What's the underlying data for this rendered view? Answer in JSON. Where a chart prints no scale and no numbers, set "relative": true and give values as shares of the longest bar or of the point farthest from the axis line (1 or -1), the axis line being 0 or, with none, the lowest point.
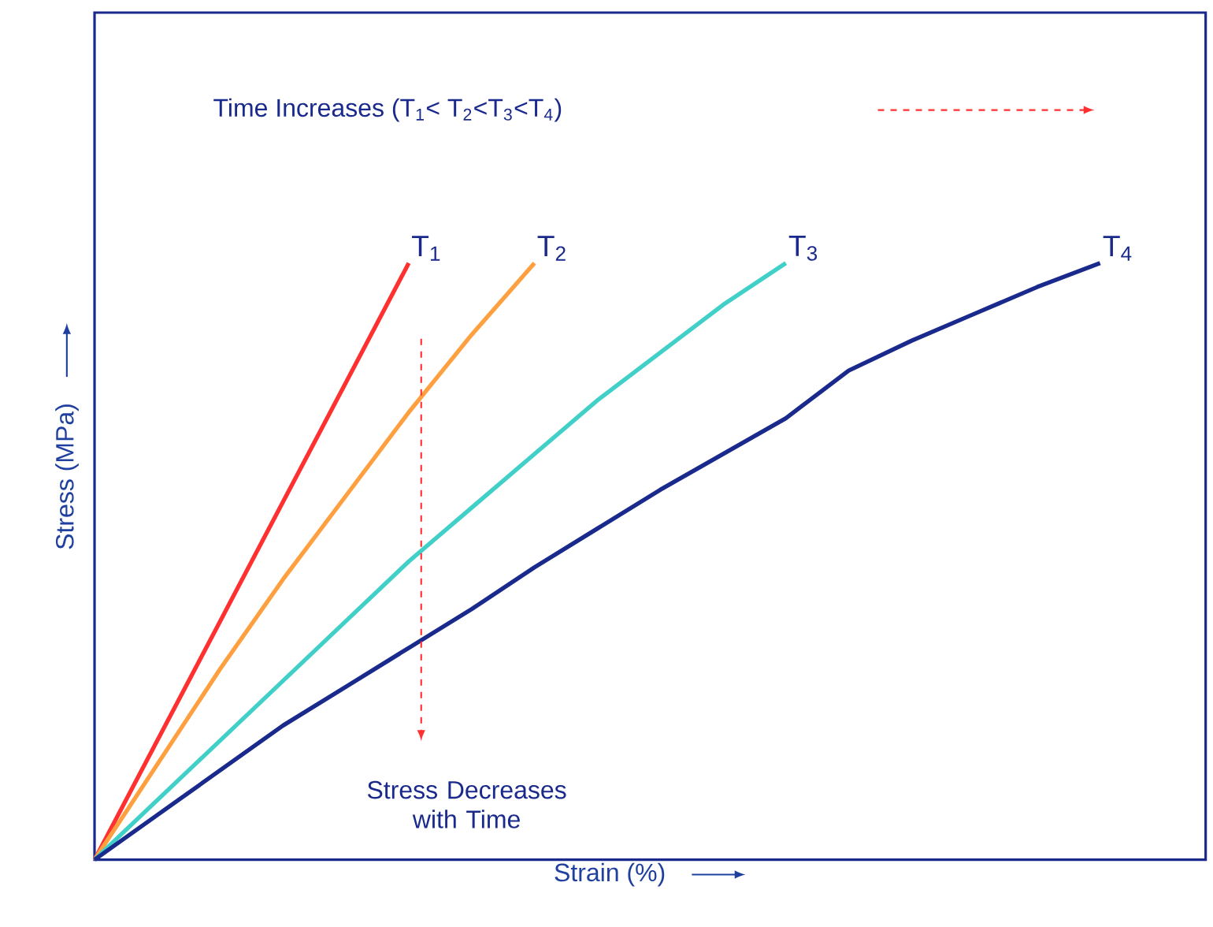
{
  "chart_data": {
    "type": "line",
    "relative": true,
    "xlabel": "Strain (%)",
    "ylabel": "Stress (MPa)",
    "categories": [
      null,
      null,
      null,
      null,
      null,
      null,
      null,
      null,
      null,
      null,
      null,
      null,
      null,
      null,
      null,
      null,
      null
    ],
    "series": [
      {
        "name": "T$_{1}$",
        "color": "#ff3030",
        "values": [
          0,
          0.2,
          0.4,
          0.6,
          0.8,
          1,
          null,
          null,
          null,
          null,
          null,
          null,
          null,
          null,
          null,
          null,
          null
        ]
      },
      {
        "name": "T$_{2}$",
        "color": "#ffa040",
        "values": [
          0,
          0.16,
          0.32,
          0.47,
          0.61,
          0.75,
          0.88,
          1,
          null,
          null,
          null,
          null,
          null,
          null,
          null,
          null,
          null
        ]
      },
      {
        "name": "T$_{3}$",
        "color": "#40d0c8",
        "values": [
          0,
          0.1,
          0.2,
          0.3,
          0.4,
          0.5,
          0.59,
          0.68,
          0.77,
          0.85,
          0.93,
          1,
          null,
          null,
          null,
          null,
          null
        ]
      },
      {
        "name": "T$_{4}$",
        "color": "#1a2a8c",
        "values": [
          0,
          0.075,
          0.15,
          0.225,
          0.29,
          0.355,
          0.42,
          0.49,
          0.555,
          0.62,
          0.68,
          0.74,
          0.82,
          0.87,
          0.915,
          0.96,
          1
        ]
      }
    ],
    "annotations": [
      "Time Increases (T$_{1}$< T$_{2}$<T$_{3}$<T$_{4}$)",
      "Stress Decreases with Time"
    ]
  }
}
